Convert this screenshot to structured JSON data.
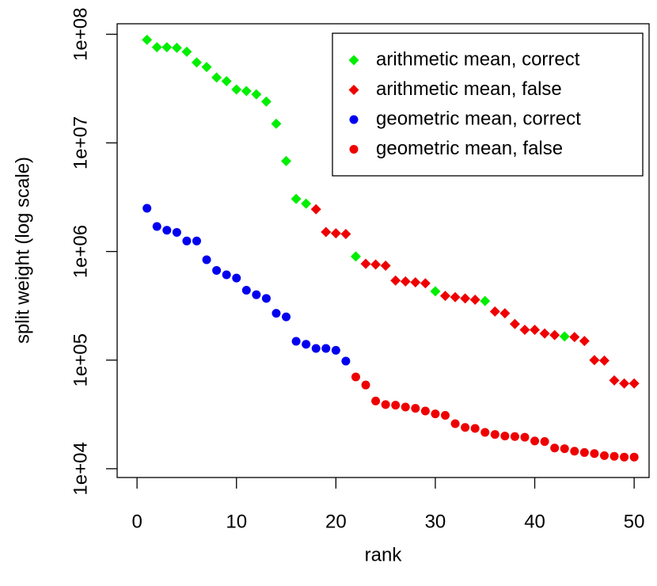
{
  "chart_data": {
    "type": "scatter",
    "x_label": "rank",
    "y_label": "split weight (log scale)",
    "log_y": true,
    "legend": "top-right",
    "xlim": [
      -2,
      51.5
    ],
    "ylim": [
      8300,
      125000000
    ],
    "xticks": [
      0,
      10,
      20,
      30,
      40,
      50
    ],
    "yticks": [
      {
        "value": 10000,
        "label": "1e+04"
      },
      {
        "value": 100000,
        "label": "1e+05"
      },
      {
        "value": 1000000,
        "label": "1e+06"
      },
      {
        "value": 10000000,
        "label": "1e+07"
      },
      {
        "value": 100000000,
        "label": "1e+08"
      }
    ],
    "series": [
      {
        "name": "arithmetic mean, correct",
        "color": "#00ee00",
        "marker": "diamond",
        "x": [
          1,
          2,
          3,
          4,
          5,
          6,
          7,
          8,
          9,
          10,
          11,
          12,
          13,
          14,
          15,
          16,
          17,
          22,
          30,
          35,
          43
        ],
        "values": [
          89000000,
          76000000,
          76000000,
          75000000,
          69000000,
          55000000,
          50000000,
          40000000,
          37000000,
          31000000,
          30000000,
          28000000,
          24000000,
          15000000,
          6800000,
          3050000,
          2760000,
          900000,
          430000,
          350000,
          165000
        ]
      },
      {
        "name": "arithmetic mean, false",
        "color": "#ee0000",
        "marker": "diamond",
        "x": [
          18,
          19,
          20,
          21,
          23,
          24,
          25,
          26,
          27,
          28,
          29,
          31,
          32,
          33,
          34,
          36,
          37,
          38,
          39,
          40,
          41,
          42,
          44,
          45,
          46,
          47,
          48,
          49,
          50
        ],
        "values": [
          2450000,
          1510000,
          1470000,
          1450000,
          770000,
          760000,
          740000,
          540000,
          530000,
          520000,
          510000,
          390000,
          380000,
          370000,
          360000,
          280000,
          270000,
          215000,
          190000,
          190000,
          176000,
          170000,
          163000,
          150000,
          100000,
          99000,
          65000,
          61000,
          61000
        ]
      },
      {
        "name": "geometric mean, correct",
        "color": "#0000ee",
        "marker": "circle",
        "x": [
          1,
          2,
          3,
          4,
          5,
          6,
          7,
          8,
          9,
          10,
          11,
          12,
          13,
          14,
          15,
          16,
          17,
          18,
          19,
          20,
          21
        ],
        "values": [
          2500000,
          1700000,
          1570000,
          1500000,
          1250000,
          1250000,
          840000,
          670000,
          610000,
          570000,
          440000,
          400000,
          370000,
          270000,
          250000,
          149000,
          140000,
          128000,
          128000,
          123000,
          98000
        ]
      },
      {
        "name": "geometric mean, false",
        "color": "#ee0000",
        "marker": "circle",
        "x": [
          22,
          23,
          24,
          25,
          26,
          27,
          28,
          29,
          30,
          31,
          32,
          33,
          34,
          35,
          36,
          37,
          38,
          39,
          40,
          41,
          42,
          43,
          44,
          45,
          46,
          47,
          48,
          49,
          50
        ],
        "values": [
          70000,
          59000,
          42000,
          39000,
          38500,
          37000,
          36000,
          34000,
          32000,
          31000,
          26000,
          24000,
          23500,
          21600,
          20700,
          20000,
          19800,
          19500,
          18000,
          17800,
          15500,
          15300,
          14500,
          14100,
          13800,
          13200,
          13000,
          12800,
          12800
        ]
      }
    ]
  }
}
